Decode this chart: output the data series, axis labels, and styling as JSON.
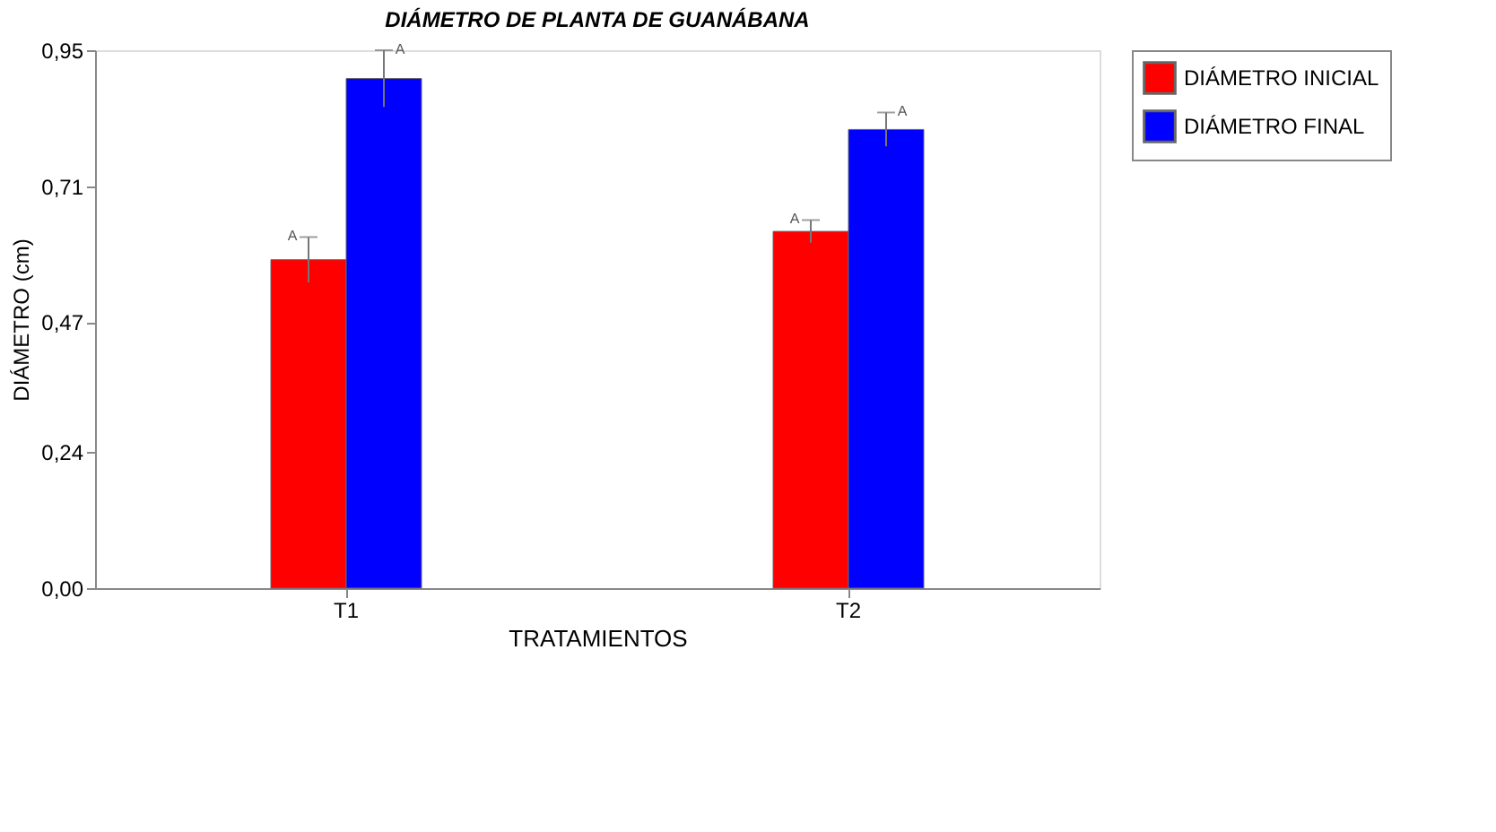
{
  "chart_data": {
    "type": "bar",
    "title": "DIÁMETRO DE PLANTA DE GUANÁBANA",
    "xlabel": "TRATAMIENTOS",
    "ylabel": "DIÁMETRO (cm)",
    "categories": [
      "T1",
      "T2"
    ],
    "series": [
      {
        "name": "DIÁMETRO INICIAL",
        "color": "#ff0000",
        "values": [
          0.58,
          0.63
        ],
        "errors": [
          0.04,
          0.02
        ]
      },
      {
        "name": "DIÁMETRO FINAL",
        "color": "#0000ff",
        "values": [
          0.9,
          0.81
        ],
        "errors": [
          0.05,
          0.03
        ]
      }
    ],
    "ylim": [
      0,
      0.95
    ],
    "yticks": [
      {
        "value": 0,
        "label": "0,00"
      },
      {
        "value": 0.24,
        "label": "0,24"
      },
      {
        "value": 0.47,
        "label": "0,47"
      },
      {
        "value": 0.71,
        "label": "0,71"
      },
      {
        "value": 0.95,
        "label": "0,95"
      }
    ],
    "annotations": [
      "A",
      "A",
      "A",
      "A"
    ],
    "grid": false,
    "legend": "right"
  }
}
